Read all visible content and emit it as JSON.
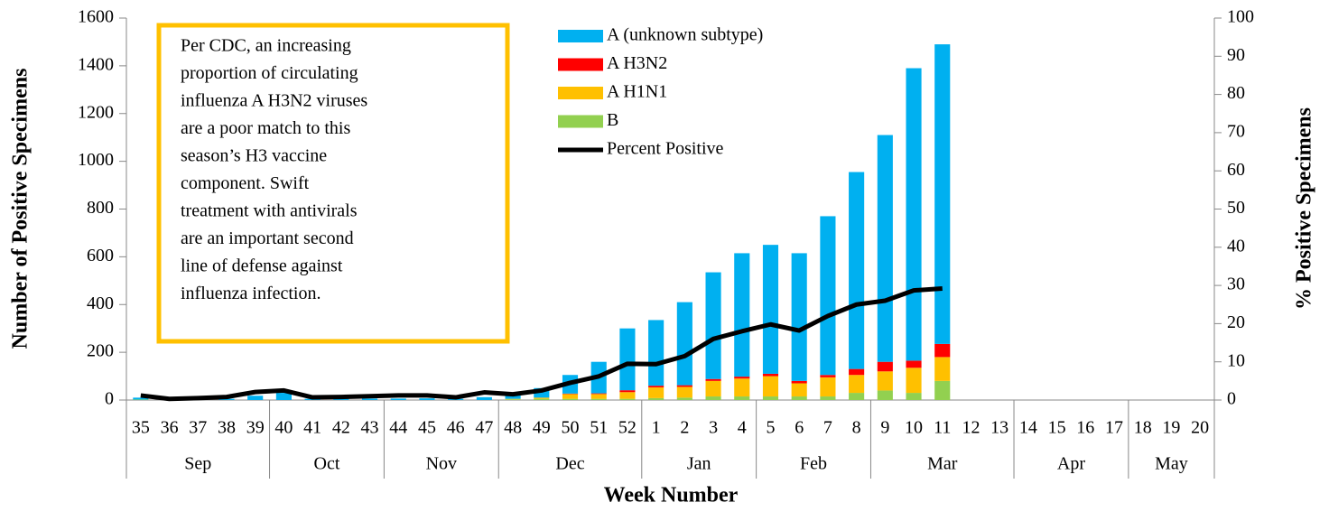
{
  "chart_data": {
    "type": "bar",
    "stacked": true,
    "x_label": "Week Number",
    "y_label": "Number of Positive Specimens",
    "y2_label": "% Positive Specimens",
    "annotation": [
      "Per CDC, an increasing",
      "proportion of circulating",
      "influenza A H3N2 viruses",
      "are a poor match to this",
      "season’s H3 vaccine",
      "component. Swift",
      "treatment with antivirals",
      "are an important second",
      "line of defense against",
      "influenza infection."
    ],
    "category_groups": [
      {
        "label": "Sep",
        "weeks": [
          "35",
          "36",
          "37",
          "38",
          "39"
        ]
      },
      {
        "label": "Oct",
        "weeks": [
          "40",
          "41",
          "42",
          "43"
        ]
      },
      {
        "label": "Nov",
        "weeks": [
          "44",
          "45",
          "46",
          "47"
        ]
      },
      {
        "label": "Dec",
        "weeks": [
          "48",
          "49",
          "50",
          "51",
          "52"
        ]
      },
      {
        "label": "Jan",
        "weeks": [
          "1",
          "2",
          "3",
          "4"
        ]
      },
      {
        "label": "Feb",
        "weeks": [
          "5",
          "6",
          "7",
          "8"
        ]
      },
      {
        "label": "Mar",
        "weeks": [
          "9",
          "10",
          "11",
          "12",
          "13"
        ]
      },
      {
        "label": "Apr",
        "weeks": [
          "14",
          "15",
          "16",
          "17"
        ]
      },
      {
        "label": "May",
        "weeks": [
          "18",
          "19",
          "20"
        ]
      }
    ],
    "series": [
      {
        "name": "A (unknown subtype)",
        "color": "#00b0f0",
        "values": [
          8,
          3,
          4,
          5,
          18,
          30,
          5,
          5,
          6,
          6,
          7,
          5,
          12,
          15,
          40,
          78,
          132,
          259,
          275,
          348,
          447,
          517,
          540,
          535,
          665,
          825,
          950,
          1225,
          1255,
          null,
          null,
          null,
          null,
          null,
          null,
          null,
          null,
          null
        ]
      },
      {
        "name": "A H3N2",
        "color": "#ff0000",
        "values": [
          0,
          0,
          0,
          0,
          0,
          0,
          0,
          0,
          0,
          0,
          0,
          0,
          0,
          0,
          0,
          2,
          3,
          8,
          7,
          7,
          8,
          8,
          10,
          10,
          10,
          25,
          40,
          30,
          55,
          null,
          null,
          null,
          null,
          null,
          null,
          null,
          null,
          null
        ]
      },
      {
        "name": "A H1N1",
        "color": "#ffc000",
        "values": [
          0,
          0,
          0,
          0,
          0,
          0,
          0,
          0,
          0,
          0,
          0,
          0,
          0,
          2,
          5,
          20,
          20,
          28,
          45,
          45,
          65,
          75,
          85,
          55,
          80,
          75,
          80,
          105,
          100,
          null,
          null,
          null,
          null,
          null,
          null,
          null,
          null,
          null
        ]
      },
      {
        "name": "B",
        "color": "#92d050",
        "values": [
          2,
          0,
          0,
          0,
          0,
          0,
          0,
          0,
          0,
          0,
          0,
          0,
          0,
          3,
          5,
          5,
          5,
          5,
          8,
          10,
          15,
          15,
          15,
          15,
          15,
          30,
          40,
          30,
          80,
          null,
          null,
          null,
          null,
          null,
          null,
          null,
          null,
          null
        ]
      },
      {
        "name": "Percent Positive",
        "type": "line",
        "axis": "y2",
        "color": "#000000",
        "values": [
          1.2,
          0.3,
          0.5,
          0.8,
          2.1,
          2.5,
          0.7,
          0.8,
          1.0,
          1.2,
          1.2,
          0.7,
          2.0,
          1.5,
          2.5,
          4.5,
          6.2,
          9.5,
          9.4,
          11.5,
          16,
          18,
          19.8,
          18.2,
          22,
          25,
          26,
          28.7,
          29.2,
          null,
          null,
          null,
          null,
          null,
          null,
          null,
          null,
          null
        ]
      }
    ],
    "ylim": [
      0,
      1600
    ],
    "yticks": [
      0,
      200,
      400,
      600,
      800,
      1000,
      1200,
      1400,
      1600
    ],
    "y2lim": [
      0,
      100
    ],
    "y2ticks": [
      0,
      10,
      20,
      30,
      40,
      50,
      60,
      70,
      80,
      90,
      100
    ]
  }
}
